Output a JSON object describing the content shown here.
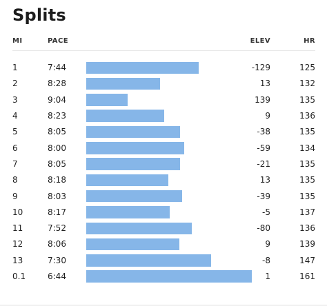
{
  "title": "Splits",
  "columns": {
    "mi": "MI",
    "pace": "PACE",
    "elev": "ELEV",
    "hr": "HR"
  },
  "colors": {
    "bar": "#86b6e8"
  },
  "splits": [
    {
      "mi": "1",
      "pace": "7:44",
      "pace_seconds": 464,
      "elev": "-129",
      "hr": "125"
    },
    {
      "mi": "2",
      "pace": "8:28",
      "pace_seconds": 508,
      "elev": "13",
      "hr": "132"
    },
    {
      "mi": "3",
      "pace": "9:04",
      "pace_seconds": 544,
      "elev": "139",
      "hr": "135"
    },
    {
      "mi": "4",
      "pace": "8:23",
      "pace_seconds": 503,
      "elev": "9",
      "hr": "136"
    },
    {
      "mi": "5",
      "pace": "8:05",
      "pace_seconds": 485,
      "elev": "-38",
      "hr": "135"
    },
    {
      "mi": "6",
      "pace": "8:00",
      "pace_seconds": 480,
      "elev": "-59",
      "hr": "134"
    },
    {
      "mi": "7",
      "pace": "8:05",
      "pace_seconds": 485,
      "elev": "-21",
      "hr": "135"
    },
    {
      "mi": "8",
      "pace": "8:18",
      "pace_seconds": 498,
      "elev": "13",
      "hr": "135"
    },
    {
      "mi": "9",
      "pace": "8:03",
      "pace_seconds": 483,
      "elev": "-39",
      "hr": "135"
    },
    {
      "mi": "10",
      "pace": "8:17",
      "pace_seconds": 497,
      "elev": "-5",
      "hr": "137"
    },
    {
      "mi": "11",
      "pace": "7:52",
      "pace_seconds": 472,
      "elev": "-80",
      "hr": "136"
    },
    {
      "mi": "12",
      "pace": "8:06",
      "pace_seconds": 486,
      "elev": "9",
      "hr": "139"
    },
    {
      "mi": "13",
      "pace": "7:30",
      "pace_seconds": 450,
      "elev": "-8",
      "hr": "147"
    },
    {
      "mi": "0.1",
      "pace": "6:44",
      "pace_seconds": 404,
      "elev": "1",
      "hr": "161"
    }
  ]
}
